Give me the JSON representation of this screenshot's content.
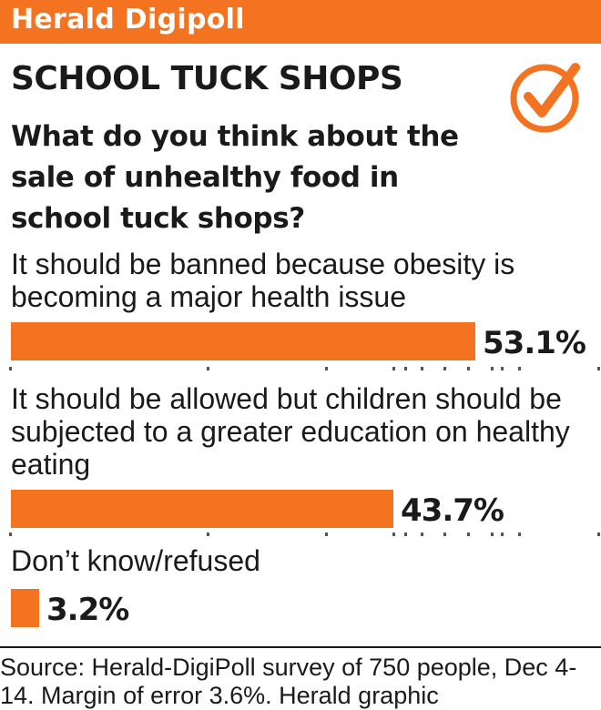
{
  "header": {
    "brand": "Herald Digipoll"
  },
  "poll": {
    "title": "SCHOOL TUCK SHOPS",
    "question": "What do you think about the sale of unhealthy food in school tuck shops?",
    "answers": [
      {
        "label": "It should be banned because obesity is becoming a major health issue",
        "value_label": "53.1%"
      },
      {
        "label": "It should be allowed but children should be subjected to a greater education on healthy eating",
        "value_label": "43.7%"
      },
      {
        "label": "Don’t know/refused",
        "value_label": "3.2%"
      }
    ]
  },
  "chart_data": {
    "type": "bar",
    "orientation": "horizontal",
    "title": "SCHOOL TUCK SHOPS",
    "categories": [
      "It should be banned because obesity is becoming a major health issue",
      "It should be allowed but children should be subjected to a greater education on healthy eating",
      "Don’t know/refused"
    ],
    "values": [
      53.1,
      43.7,
      3.2
    ],
    "unit": "%",
    "bar_color": "#f47321"
  },
  "footer": {
    "source": "Source: Herald-DigiPoll survey of 750 people, Dec 4-14. Margin of error 3.6%. Herald graphic"
  },
  "colors": {
    "accent": "#f47321",
    "text": "#1a1a1a",
    "background": "#ffffff"
  },
  "icons": {
    "badge": "checkmark-circle-icon"
  }
}
